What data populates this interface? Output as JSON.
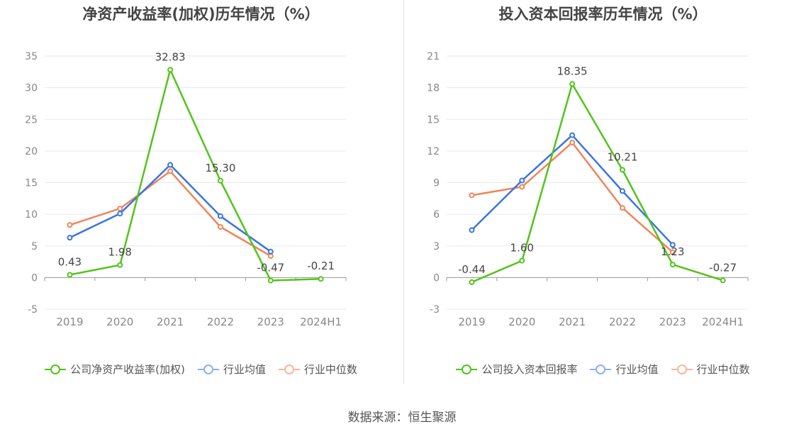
{
  "source": "数据来源：恒生聚源",
  "chart_data": [
    {
      "type": "line",
      "title": "净资产收益率(加权)历年情况（%）",
      "categories": [
        "2019",
        "2020",
        "2021",
        "2022",
        "2023",
        "2024H1"
      ],
      "ylim": [
        -5,
        35
      ],
      "yticks": [
        -5,
        0,
        5,
        10,
        15,
        20,
        25,
        30,
        35
      ],
      "series": [
        {
          "name": "公司净资产收益率(加权)",
          "color": "#52c41a",
          "values": [
            0.43,
            1.98,
            32.83,
            15.3,
            -0.47,
            -0.21
          ],
          "labels": [
            "0.43",
            "1.98",
            "32.83",
            "15.30",
            "-0.47",
            "-0.21"
          ]
        },
        {
          "name": "行业均值",
          "color": "#3a75e0",
          "values": [
            6.3,
            10.1,
            17.8,
            9.7,
            4.1,
            null
          ]
        },
        {
          "name": "行业中位数",
          "color": "#f0855a",
          "values": [
            8.3,
            10.9,
            16.8,
            8.0,
            3.4,
            null
          ]
        }
      ]
    },
    {
      "type": "line",
      "title": "投入资本回报率历年情况（%）",
      "categories": [
        "2019",
        "2020",
        "2021",
        "2022",
        "2023",
        "2024H1"
      ],
      "ylim": [
        -3,
        21
      ],
      "yticks": [
        -3,
        0,
        3,
        6,
        9,
        12,
        15,
        18,
        21
      ],
      "series": [
        {
          "name": "公司投入资本回报率",
          "color": "#52c41a",
          "values": [
            -0.44,
            1.6,
            18.35,
            10.21,
            1.23,
            -0.27
          ],
          "labels": [
            "-0.44",
            "1.60",
            "18.35",
            "10.21",
            "1.23",
            "-0.27"
          ]
        },
        {
          "name": "行业均值",
          "color": "#3a75e0",
          "values": [
            4.5,
            9.2,
            13.5,
            8.2,
            3.1,
            null
          ]
        },
        {
          "name": "行业中位数",
          "color": "#f0855a",
          "values": [
            7.8,
            8.6,
            12.8,
            6.6,
            2.4,
            null
          ]
        }
      ]
    }
  ]
}
